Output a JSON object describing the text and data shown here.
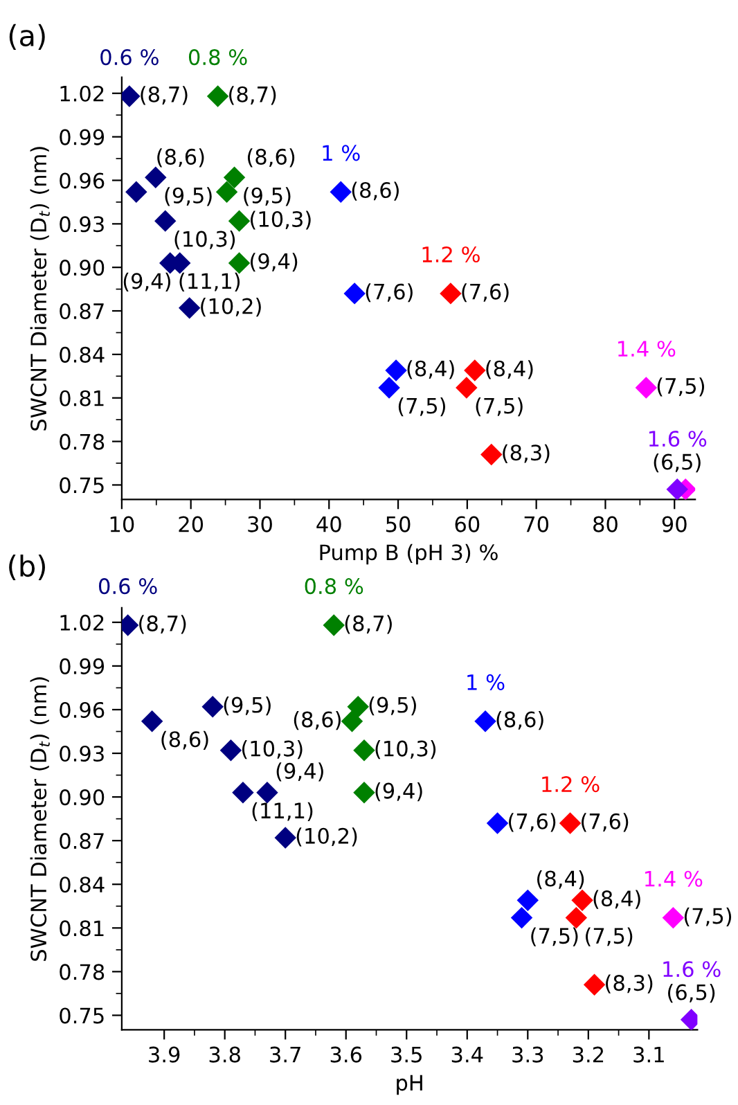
{
  "chart_data": [
    {
      "type": "scatter",
      "title": "(a)",
      "xlabel": "Pump B (pH 3) %",
      "ylabel": "SWCNT Diameter (D$_{t}$) (nm)",
      "xlim": [
        10,
        93
      ],
      "ylim": [
        0.74,
        1.031
      ],
      "xticks": [
        10,
        20,
        30,
        40,
        50,
        60,
        70,
        80,
        90
      ],
      "yticks": [
        {
          "value": 0.75,
          "label": "0.75"
        },
        {
          "value": 0.78,
          "label": "0.78"
        },
        {
          "value": 0.81,
          "label": "0.81"
        },
        {
          "value": 0.84,
          "label": "0.84"
        },
        {
          "value": 0.87,
          "label": "0.87"
        },
        {
          "value": 0.9,
          "label": "0.90"
        },
        {
          "value": 0.93,
          "label": "0.93"
        },
        {
          "value": 0.96,
          "label": "0.96"
        },
        {
          "value": 0.99,
          "label": "0.99"
        },
        {
          "value": 1.02,
          "label": "1.02"
        }
      ],
      "marker": "diamond",
      "grid": false,
      "legend": false,
      "series": [
        {
          "name": "0.6 %",
          "color": "#000080",
          "x": [
            11.1,
            12.1,
            14.9,
            16.3,
            17.0,
            18.4,
            19.8
          ],
          "values": [
            1.018,
            0.952,
            0.962,
            0.932,
            0.903,
            0.903,
            0.872
          ]
        },
        {
          "name": "0.8 %",
          "color": "#008000",
          "x": [
            23.9,
            25.2,
            26.3,
            27.0,
            27.0
          ],
          "values": [
            1.018,
            0.952,
            0.962,
            0.932,
            0.903
          ]
        },
        {
          "name": "1 %",
          "color": "#0000ff",
          "x": [
            41.7,
            43.7,
            49.7,
            48.7
          ],
          "values": [
            0.952,
            0.882,
            0.829,
            0.817
          ]
        },
        {
          "name": "1.2 %",
          "color": "#ff0000",
          "x": [
            57.6,
            61.1,
            59.9,
            63.5
          ],
          "values": [
            0.882,
            0.829,
            0.817,
            0.771
          ]
        },
        {
          "name": "1.4 %",
          "color": "#ff00ff",
          "x": [
            85.9,
            91.6
          ],
          "values": [
            0.817,
            0.747
          ]
        },
        {
          "name": "1.6 %",
          "color": "#8000ff",
          "x": [
            90.4
          ],
          "values": [
            0.747
          ]
        }
      ],
      "annotations": [
        {
          "text": "(8,7)",
          "x": 11.1,
          "y": 1.018
        },
        {
          "text": "(8,6)",
          "x": 12.1,
          "y": 0.952
        },
        {
          "text": "(9,5)",
          "x": 14.9,
          "y": 0.962
        },
        {
          "text": "(10,3)",
          "x": 16.3,
          "y": 0.932
        },
        {
          "text": "(11,1)",
          "x": 17.0,
          "y": 0.903
        },
        {
          "text": "(9,4)",
          "x": 18.4,
          "y": 0.903
        },
        {
          "text": "(10,2)",
          "x": 19.8,
          "y": 0.872
        },
        {
          "text": "(8,7)",
          "x": 23.9,
          "y": 1.018
        },
        {
          "text": "(8,6)",
          "x": 25.2,
          "y": 0.952
        },
        {
          "text": "(9,5)",
          "x": 26.3,
          "y": 0.962
        },
        {
          "text": "(10,3)",
          "x": 27.0,
          "y": 0.932
        },
        {
          "text": "(9,4)",
          "x": 27.0,
          "y": 0.903
        },
        {
          "text": "(8,6)",
          "x": 41.7,
          "y": 0.952
        },
        {
          "text": "(7,6)",
          "x": 43.7,
          "y": 0.882
        },
        {
          "text": "(8,4)",
          "x": 49.7,
          "y": 0.829
        },
        {
          "text": "(7,5)",
          "x": 48.7,
          "y": 0.817
        },
        {
          "text": "(7,6)",
          "x": 57.6,
          "y": 0.882
        },
        {
          "text": "(8,4)",
          "x": 61.1,
          "y": 0.829
        },
        {
          "text": "(7,5)",
          "x": 59.9,
          "y": 0.817
        },
        {
          "text": "(8,3)",
          "x": 63.5,
          "y": 0.771
        },
        {
          "text": "(7,5)",
          "x": 85.9,
          "y": 0.817
        },
        {
          "text": "(6,5)",
          "x": 90.4,
          "y": 0.747
        }
      ]
    },
    {
      "type": "scatter",
      "title": "(b)",
      "xlabel": "pH",
      "ylabel": "SWCNT Diameter (D$_{t}$) (nm)",
      "xlim": [
        3.97,
        3.02
      ],
      "ylim": [
        0.74,
        1.03
      ],
      "xticks": [
        3.9,
        3.8,
        3.7,
        3.6,
        3.5,
        3.4,
        3.3,
        3.2,
        3.1
      ],
      "yticks": [
        {
          "value": 0.75,
          "label": "0.75"
        },
        {
          "value": 0.78,
          "label": "0.78"
        },
        {
          "value": 0.81,
          "label": "0.81"
        },
        {
          "value": 0.84,
          "label": "0.84"
        },
        {
          "value": 0.87,
          "label": "0.87"
        },
        {
          "value": 0.9,
          "label": "0.90"
        },
        {
          "value": 0.93,
          "label": "0.93"
        },
        {
          "value": 0.96,
          "label": "0.96"
        },
        {
          "value": 0.99,
          "label": "0.99"
        },
        {
          "value": 1.02,
          "label": "1.02"
        }
      ],
      "marker": "diamond",
      "grid": false,
      "legend": false,
      "series": [
        {
          "name": "0.6 %",
          "color": "#000080",
          "x": [
            3.96,
            3.92,
            3.82,
            3.79,
            3.77,
            3.73,
            3.7
          ],
          "values": [
            1.018,
            0.952,
            0.962,
            0.932,
            0.903,
            0.903,
            0.872
          ]
        },
        {
          "name": "0.8 %",
          "color": "#008000",
          "x": [
            3.62,
            3.59,
            3.58,
            3.57,
            3.57
          ],
          "values": [
            1.018,
            0.952,
            0.962,
            0.932,
            0.903
          ]
        },
        {
          "name": "1 %",
          "color": "#0000ff",
          "x": [
            3.37,
            3.35,
            3.3,
            3.31
          ],
          "values": [
            0.952,
            0.882,
            0.829,
            0.817
          ]
        },
        {
          "name": "1.2 %",
          "color": "#ff0000",
          "x": [
            3.23,
            3.21,
            3.22,
            3.19
          ],
          "values": [
            0.882,
            0.829,
            0.817,
            0.771
          ]
        },
        {
          "name": "1.4 %",
          "color": "#ff00ff",
          "x": [
            3.06
          ],
          "values": [
            0.817
          ]
        },
        {
          "name": "1.6 %",
          "color": "#8000ff",
          "x": [
            3.03
          ],
          "values": [
            0.747
          ]
        }
      ],
      "annotations": [
        {
          "text": "(8,7)",
          "x": 3.96,
          "y": 1.018
        },
        {
          "text": "(8,6)",
          "x": 3.92,
          "y": 0.952
        },
        {
          "text": "(9,5)",
          "x": 3.82,
          "y": 0.962
        },
        {
          "text": "(10,3)",
          "x": 3.79,
          "y": 0.932
        },
        {
          "text": "(11,1)",
          "x": 3.77,
          "y": 0.903
        },
        {
          "text": "(9,4)",
          "x": 3.73,
          "y": 0.903
        },
        {
          "text": "(10,2)",
          "x": 3.7,
          "y": 0.872
        },
        {
          "text": "(8,7)",
          "x": 3.62,
          "y": 1.018
        },
        {
          "text": "(8,6)",
          "x": 3.59,
          "y": 0.952
        },
        {
          "text": "(9,5)",
          "x": 3.58,
          "y": 0.962
        },
        {
          "text": "(10,3)",
          "x": 3.57,
          "y": 0.932
        },
        {
          "text": "(9,4)",
          "x": 3.57,
          "y": 0.903
        },
        {
          "text": "(8,6)",
          "x": 3.37,
          "y": 0.952
        },
        {
          "text": "(7,6)",
          "x": 3.35,
          "y": 0.882
        },
        {
          "text": "(8,4)",
          "x": 3.3,
          "y": 0.829
        },
        {
          "text": "(7,5)",
          "x": 3.31,
          "y": 0.817
        },
        {
          "text": "(7,6)",
          "x": 3.23,
          "y": 0.882
        },
        {
          "text": "(8,4)",
          "x": 3.21,
          "y": 0.829
        },
        {
          "text": "(7,5)",
          "x": 3.22,
          "y": 0.817
        },
        {
          "text": "(8,3)",
          "x": 3.19,
          "y": 0.771
        },
        {
          "text": "(7,5)",
          "x": 3.06,
          "y": 0.817
        },
        {
          "text": "(6,5)",
          "x": 3.03,
          "y": 0.747
        }
      ]
    }
  ]
}
